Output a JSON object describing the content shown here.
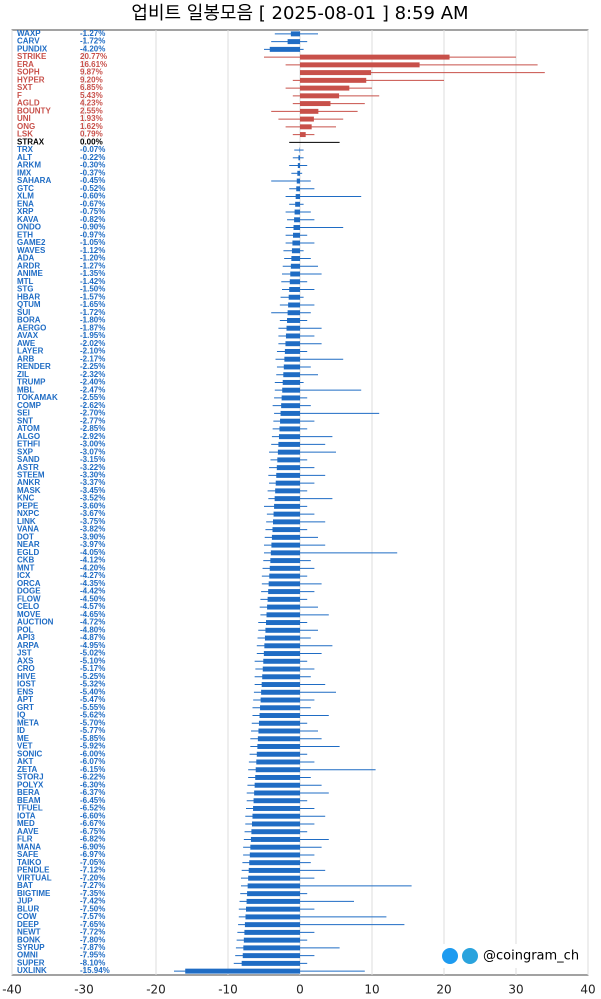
{
  "chart_data": {
    "type": "range-bar",
    "title": "업비트 일봉모음 [ 2025-08-01 ]  8:59 AM",
    "watermark": "@coingram_ch",
    "up_color": "#c8504a",
    "down_color": "#1f6cc4",
    "flat_color": "#000000",
    "grid": true,
    "xlim": [
      -40,
      40
    ],
    "xticks": [
      -40,
      -30,
      -20,
      -10,
      0,
      10,
      20,
      30,
      40
    ],
    "categories": [
      "WAXP",
      "CARV",
      "PUNDIX",
      "STRIKE",
      "ERA",
      "SOPH",
      "HYPER",
      "SXT",
      "F",
      "AGLD",
      "BOUNTY",
      "UNI",
      "ONG",
      "LSK",
      "STRAX",
      "TRX",
      "ALT",
      "ARKM",
      "IMX",
      "SAHARA",
      "GTC",
      "XLM",
      "ENA",
      "XRP",
      "KAVA",
      "ONDO",
      "ETH",
      "GAME2",
      "WAVES",
      "ADA",
      "ARDR",
      "ANIME",
      "MTL",
      "STG",
      "HBAR",
      "QTUM",
      "SUI",
      "BORA",
      "AERGO",
      "AVAX",
      "AWE",
      "LAYER",
      "ARB",
      "RENDER",
      "ZIL",
      "TRUMP",
      "MBL",
      "TOKAMAK",
      "COMP",
      "SEI",
      "SNT",
      "ATOM",
      "ALGO",
      "ETHFI",
      "SXP",
      "SAND",
      "ASTR",
      "STEEM",
      "ANKR",
      "MASK",
      "KNC",
      "PEPE",
      "NXPC",
      "LINK",
      "VANA",
      "DOT",
      "NEAR",
      "EGLD",
      "CKB",
      "MNT",
      "ICX",
      "ORCA",
      "DOGE",
      "FLOW",
      "CELO",
      "MOVE",
      "AUCTION",
      "POL",
      "API3",
      "ARPA",
      "JST",
      "AXS",
      "CRO",
      "HIVE",
      "IOST",
      "ENS",
      "APT",
      "GRT",
      "IQ",
      "META",
      "ID",
      "ME",
      "VET",
      "SONIC",
      "AKT",
      "ZETA",
      "STORJ",
      "POLYX",
      "BERA",
      "BEAM",
      "TFUEL",
      "IOTA",
      "MED",
      "AAVE",
      "FLR",
      "MANA",
      "SAFE",
      "TAIKO",
      "PENDLE",
      "VIRTUAL",
      "BAT",
      "BIGTIME",
      "JUP",
      "BLUR",
      "COW",
      "DEEP",
      "NEWT",
      "BONK",
      "SYRUP",
      "OMNI",
      "SUPER",
      "UXLINK"
    ],
    "values": [
      -1.27,
      -1.72,
      -4.2,
      20.77,
      16.61,
      9.87,
      9.2,
      6.85,
      5.43,
      4.23,
      2.55,
      1.93,
      1.62,
      0.79,
      0,
      -0.07,
      -0.22,
      -0.3,
      -0.37,
      -0.45,
      -0.52,
      -0.6,
      -0.67,
      -0.75,
      -0.82,
      -0.9,
      -0.97,
      -1.05,
      -1.12,
      -1.2,
      -1.27,
      -1.35,
      -1.42,
      -1.5,
      -1.57,
      -1.65,
      -1.72,
      -1.8,
      -1.87,
      -1.95,
      -2.02,
      -2.1,
      -2.17,
      -2.25,
      -2.32,
      -2.4,
      -2.47,
      -2.55,
      -2.62,
      -2.7,
      -2.77,
      -2.85,
      -2.92,
      -3,
      -3.07,
      -3.15,
      -3.22,
      -3.3,
      -3.37,
      -3.45,
      -3.52,
      -3.6,
      -3.67,
      -3.75,
      -3.82,
      -3.9,
      -3.97,
      -4.05,
      -4.12,
      -4.2,
      -4.27,
      -4.35,
      -4.42,
      -4.5,
      -4.57,
      -4.65,
      -4.72,
      -4.8,
      -4.87,
      -4.95,
      -5.02,
      -5.1,
      -5.17,
      -5.25,
      -5.32,
      -5.4,
      -5.47,
      -5.55,
      -5.62,
      -5.7,
      -5.77,
      -5.85,
      -5.92,
      -6,
      -6.07,
      -6.15,
      -6.22,
      -6.3,
      -6.37,
      -6.45,
      -6.52,
      -6.6,
      -6.67,
      -6.75,
      -6.82,
      -6.9,
      -6.97,
      -7.05,
      -7.12,
      -7.2,
      -7.27,
      -7.35,
      -7.42,
      -7.5,
      -7.57,
      -7.65,
      -7.72,
      -7.8,
      -7.87,
      -7.95,
      -8.1,
      -15.94
    ],
    "value_labels": [
      "-1.27%",
      "-1.72%",
      "-4.20%",
      "20.77%",
      "16.61%",
      "9.87%",
      "9.20%",
      "6.85%",
      "5.43%",
      "4.23%",
      "2.55%",
      "1.93%",
      "1.62%",
      "0.79%",
      "0.00%",
      "-0.07%",
      "-0.22%",
      "-0.30%",
      "-0.37%",
      "-0.45%",
      "-0.52%",
      "-0.60%",
      "-0.67%",
      "-0.75%",
      "-0.82%",
      "-0.90%",
      "-0.97%",
      "-1.05%",
      "-1.12%",
      "-1.20%",
      "-1.27%",
      "-1.35%",
      "-1.42%",
      "-1.50%",
      "-1.57%",
      "-1.65%",
      "-1.72%",
      "-1.80%",
      "-1.87%",
      "-1.95%",
      "-2.02%",
      "-2.10%",
      "-2.17%",
      "-2.25%",
      "-2.32%",
      "-2.40%",
      "-2.47%",
      "-2.55%",
      "-2.62%",
      "-2.70%",
      "-2.77%",
      "-2.85%",
      "-2.92%",
      "-3.00%",
      "-3.07%",
      "-3.15%",
      "-3.22%",
      "-3.30%",
      "-3.37%",
      "-3.45%",
      "-3.52%",
      "-3.60%",
      "-3.67%",
      "-3.75%",
      "-3.82%",
      "-3.90%",
      "-3.97%",
      "-4.05%",
      "-4.12%",
      "-4.20%",
      "-4.27%",
      "-4.35%",
      "-4.42%",
      "-4.50%",
      "-4.57%",
      "-4.65%",
      "-4.72%",
      "-4.80%",
      "-4.87%",
      "-4.95%",
      "-5.02%",
      "-5.10%",
      "-5.17%",
      "-5.25%",
      "-5.32%",
      "-5.40%",
      "-5.47%",
      "-5.55%",
      "-5.62%",
      "-5.70%",
      "-5.77%",
      "-5.85%",
      "-5.92%",
      "-6.00%",
      "-6.07%",
      "-6.15%",
      "-6.22%",
      "-6.30%",
      "-6.37%",
      "-6.45%",
      "-6.52%",
      "-6.60%",
      "-6.67%",
      "-6.75%",
      "-6.82%",
      "-6.90%",
      "-6.97%",
      "-7.05%",
      "-7.12%",
      "-7.20%",
      "-7.27%",
      "-7.35%",
      "-7.42%",
      "-7.50%",
      "-7.57%",
      "-7.65%",
      "-7.72%",
      "-7.80%",
      "-7.87%",
      "-7.95%",
      "-8.10%",
      "-15.94%"
    ],
    "lows": [
      -3.5,
      -4,
      -5,
      -5,
      -2,
      0,
      -1,
      -2,
      -1,
      -1,
      -4,
      -3,
      -2,
      -1,
      -1.5,
      -0.8,
      -1,
      -1.5,
      -1.2,
      -4,
      -1.5,
      -2,
      -1.5,
      -2,
      -1.8,
      -2,
      -2,
      -2,
      -2.3,
      -2.2,
      -2.4,
      -2.5,
      -2.6,
      -2.5,
      -2.7,
      -2.8,
      -4,
      -2.8,
      -3,
      -3,
      -3,
      -3.2,
      -3.4,
      -3.2,
      -3.3,
      -3.5,
      -3.5,
      -3.6,
      -3.8,
      -3.6,
      -3.7,
      -3.8,
      -3.9,
      -4,
      -4.3,
      -4.1,
      -4.3,
      -4.4,
      -4.3,
      -4.5,
      -4.4,
      -5,
      -4.6,
      -4.7,
      -4.8,
      -4.9,
      -5,
      -5,
      -5.1,
      -5.2,
      -5.3,
      -5.3,
      -5.4,
      -5.5,
      -5.6,
      -5.5,
      -5.8,
      -5.8,
      -5.9,
      -6,
      -6,
      -6.3,
      -6.2,
      -6.3,
      -6.3,
      -6.4,
      -6.5,
      -6.6,
      -6.6,
      -6.7,
      -6.8,
      -6.9,
      -6.9,
      -7,
      -7.1,
      -7.2,
      -7.2,
      -7.3,
      -7.4,
      -7.4,
      -7.5,
      -7.6,
      -7.6,
      -7.7,
      -7.8,
      -7.9,
      -7.9,
      -8,
      -8.1,
      -8.2,
      -8.2,
      -8.3,
      -8.4,
      -8.5,
      -8.5,
      -8.6,
      -8.7,
      -8.8,
      -8.9,
      -9,
      -9.2,
      -17.5
    ],
    "highs": [
      2.5,
      1,
      0.5,
      30,
      33,
      34,
      20,
      10,
      11,
      9,
      8,
      6,
      5,
      2,
      5.5,
      0.5,
      0.5,
      1,
      0.3,
      1.5,
      2,
      8.5,
      0.5,
      1.5,
      2,
      6,
      1,
      2,
      0.5,
      1.5,
      2.5,
      3,
      1,
      2,
      0.5,
      2,
      1.5,
      1,
      3,
      2,
      3,
      1,
      6,
      1.5,
      2.5,
      0.5,
      8.5,
      1,
      1.5,
      11,
      2,
      1,
      4.5,
      3.5,
      5,
      1,
      2,
      3.5,
      2,
      1,
      4.5,
      1,
      2,
      3.5,
      1,
      2.5,
      3.5,
      13.5,
      1.5,
      2,
      1,
      3,
      2,
      1,
      2.5,
      4,
      1,
      2.5,
      1.5,
      4.5,
      3,
      1,
      2,
      1.5,
      3.5,
      5,
      2,
      1.5,
      4,
      1,
      2.5,
      3,
      5.5,
      1,
      2,
      10.5,
      1.5,
      3,
      4,
      1,
      2,
      3.5,
      2,
      1,
      4,
      3,
      2,
      1.5,
      3.5,
      2,
      15.5,
      1,
      7.5,
      2,
      12,
      14.5,
      2,
      1,
      5.5,
      2,
      1,
      9
    ]
  }
}
